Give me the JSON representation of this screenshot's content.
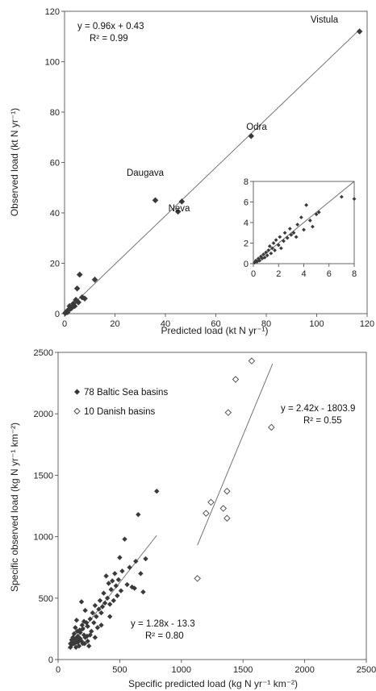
{
  "chart_data": [
    {
      "type": "scatter",
      "title": "",
      "xlabel": "Predicted load (kt N yr⁻¹)",
      "ylabel": "Observed load (kt N yr⁻¹)",
      "xlim": [
        0,
        120
      ],
      "ylim": [
        0,
        120
      ],
      "xticks": [
        0,
        20,
        40,
        60,
        80,
        100,
        120
      ],
      "yticks": [
        0,
        20,
        40,
        60,
        80,
        100,
        120
      ],
      "grid": false,
      "series": [
        {
          "marker": "filled-diamond",
          "points": [
            {
              "x": 117,
              "y": 112,
              "label": "Vistula"
            },
            {
              "x": 74,
              "y": 70.5,
              "label": "Odra"
            },
            {
              "x": 36,
              "y": 45,
              "label": "Daugava"
            },
            {
              "x": 46.5,
              "y": 44.5,
              "label": "Neva"
            },
            {
              "x": 45,
              "y": 40.5
            },
            {
              "x": 6,
              "y": 15.5
            },
            {
              "x": 12,
              "y": 13.5
            },
            {
              "x": 5,
              "y": 10
            },
            {
              "x": 7,
              "y": 6.5
            },
            {
              "x": 8,
              "y": 6
            },
            {
              "x": 4.5,
              "y": 5.5
            },
            {
              "x": 5.5,
              "y": 4.5
            },
            {
              "x": 3.5,
              "y": 4
            },
            {
              "x": 4,
              "y": 3
            },
            {
              "x": 3,
              "y": 2.5
            },
            {
              "x": 2,
              "y": 3
            },
            {
              "x": 2.5,
              "y": 2
            },
            {
              "x": 1.5,
              "y": 1.5
            },
            {
              "x": 1,
              "y": 1
            },
            {
              "x": 0.5,
              "y": 0.5
            },
            {
              "x": 0.3,
              "y": 0.2
            },
            {
              "x": 1.2,
              "y": 0.6
            }
          ]
        }
      ],
      "trendline": {
        "slope": 0.96,
        "intercept": 0.43,
        "x_range": [
          0,
          117
        ]
      },
      "annotations": [
        "y = 0.96x + 0.43",
        "R² = 0.99"
      ],
      "inset": {
        "xlim": [
          0,
          8
        ],
        "ylim": [
          0,
          8
        ],
        "xticks": [
          0,
          2,
          4,
          6,
          8
        ],
        "yticks": [
          0,
          2,
          4,
          6,
          8
        ],
        "points": [
          {
            "x": 0.1,
            "y": 0.1
          },
          {
            "x": 0.2,
            "y": 0.3
          },
          {
            "x": 0.3,
            "y": 0.2
          },
          {
            "x": 0.4,
            "y": 0.5
          },
          {
            "x": 0.5,
            "y": 0.3
          },
          {
            "x": 0.6,
            "y": 0.7
          },
          {
            "x": 0.7,
            "y": 0.5
          },
          {
            "x": 0.8,
            "y": 0.9
          },
          {
            "x": 0.9,
            "y": 0.6
          },
          {
            "x": 1.0,
            "y": 1.1
          },
          {
            "x": 1.1,
            "y": 0.8
          },
          {
            "x": 1.2,
            "y": 1.3
          },
          {
            "x": 1.3,
            "y": 1.7
          },
          {
            "x": 1.4,
            "y": 1.0
          },
          {
            "x": 1.5,
            "y": 1.5
          },
          {
            "x": 1.6,
            "y": 2.0
          },
          {
            "x": 1.7,
            "y": 1.3
          },
          {
            "x": 1.8,
            "y": 2.3
          },
          {
            "x": 2.0,
            "y": 1.8
          },
          {
            "x": 2.1,
            "y": 2.6
          },
          {
            "x": 2.2,
            "y": 1.5
          },
          {
            "x": 2.4,
            "y": 2.2
          },
          {
            "x": 2.5,
            "y": 3.0
          },
          {
            "x": 2.7,
            "y": 2.5
          },
          {
            "x": 2.9,
            "y": 3.4
          },
          {
            "x": 3.0,
            "y": 2.8
          },
          {
            "x": 3.2,
            "y": 3.0
          },
          {
            "x": 3.4,
            "y": 2.6
          },
          {
            "x": 3.5,
            "y": 3.8
          },
          {
            "x": 3.8,
            "y": 4.5
          },
          {
            "x": 4.0,
            "y": 3.3
          },
          {
            "x": 4.2,
            "y": 5.7
          },
          {
            "x": 4.5,
            "y": 4.2
          },
          {
            "x": 4.7,
            "y": 3.6
          },
          {
            "x": 5.0,
            "y": 4.8
          },
          {
            "x": 5.2,
            "y": 5.0
          },
          {
            "x": 7.0,
            "y": 6.5
          },
          {
            "x": 8.0,
            "y": 6.3
          }
        ]
      }
    },
    {
      "type": "scatter",
      "title": "",
      "xlabel": "Specific predicted load (kg N yr⁻¹ km⁻²)",
      "ylabel": "Specific observed load (kg N yr⁻¹ km⁻²)",
      "xlim": [
        0,
        2500
      ],
      "ylim": [
        0,
        2500
      ],
      "xticks": [
        0,
        500,
        1000,
        1500,
        2000,
        2500
      ],
      "yticks": [
        0,
        500,
        1000,
        1500,
        2000,
        2500
      ],
      "grid": false,
      "legend_position": "top-left",
      "series": [
        {
          "name": "78 Baltic Sea basins",
          "marker": "filled-diamond",
          "points": [
            {
              "x": 100,
              "y": 100
            },
            {
              "x": 110,
              "y": 120
            },
            {
              "x": 120,
              "y": 150
            },
            {
              "x": 130,
              "y": 130
            },
            {
              "x": 140,
              "y": 170
            },
            {
              "x": 150,
              "y": 140
            },
            {
              "x": 160,
              "y": 190
            },
            {
              "x": 170,
              "y": 160
            },
            {
              "x": 180,
              "y": 220
            },
            {
              "x": 190,
              "y": 150
            },
            {
              "x": 200,
              "y": 250
            },
            {
              "x": 210,
              "y": 200
            },
            {
              "x": 220,
              "y": 180
            },
            {
              "x": 230,
              "y": 300
            },
            {
              "x": 240,
              "y": 270
            },
            {
              "x": 250,
              "y": 110
            },
            {
              "x": 260,
              "y": 330
            },
            {
              "x": 270,
              "y": 230
            },
            {
              "x": 280,
              "y": 380
            },
            {
              "x": 290,
              "y": 300
            },
            {
              "x": 300,
              "y": 440
            },
            {
              "x": 310,
              "y": 350
            },
            {
              "x": 320,
              "y": 260
            },
            {
              "x": 330,
              "y": 410
            },
            {
              "x": 340,
              "y": 480
            },
            {
              "x": 350,
              "y": 380
            },
            {
              "x": 360,
              "y": 430
            },
            {
              "x": 370,
              "y": 540
            },
            {
              "x": 380,
              "y": 460
            },
            {
              "x": 390,
              "y": 680
            },
            {
              "x": 400,
              "y": 500
            },
            {
              "x": 410,
              "y": 620
            },
            {
              "x": 420,
              "y": 450
            },
            {
              "x": 430,
              "y": 570
            },
            {
              "x": 440,
              "y": 640
            },
            {
              "x": 450,
              "y": 480
            },
            {
              "x": 460,
              "y": 700
            },
            {
              "x": 470,
              "y": 600
            },
            {
              "x": 480,
              "y": 520
            },
            {
              "x": 490,
              "y": 650
            },
            {
              "x": 500,
              "y": 830
            },
            {
              "x": 510,
              "y": 560
            },
            {
              "x": 520,
              "y": 720
            },
            {
              "x": 540,
              "y": 980
            },
            {
              "x": 560,
              "y": 610
            },
            {
              "x": 580,
              "y": 750
            },
            {
              "x": 600,
              "y": 590
            },
            {
              "x": 620,
              "y": 580
            },
            {
              "x": 630,
              "y": 800
            },
            {
              "x": 650,
              "y": 1180
            },
            {
              "x": 670,
              "y": 700
            },
            {
              "x": 690,
              "y": 550
            },
            {
              "x": 710,
              "y": 820
            },
            {
              "x": 800,
              "y": 1370
            },
            {
              "x": 130,
              "y": 210
            },
            {
              "x": 140,
              "y": 260
            },
            {
              "x": 150,
              "y": 320
            },
            {
              "x": 160,
              "y": 140
            },
            {
              "x": 170,
              "y": 110
            },
            {
              "x": 180,
              "y": 170
            },
            {
              "x": 190,
              "y": 470
            },
            {
              "x": 200,
              "y": 130
            },
            {
              "x": 210,
              "y": 310
            },
            {
              "x": 220,
              "y": 400
            },
            {
              "x": 240,
              "y": 150
            },
            {
              "x": 260,
              "y": 200
            },
            {
              "x": 300,
              "y": 180
            },
            {
              "x": 350,
              "y": 280
            },
            {
              "x": 420,
              "y": 350
            },
            {
              "x": 120,
              "y": 180
            },
            {
              "x": 110,
              "y": 160
            },
            {
              "x": 100,
              "y": 130
            },
            {
              "x": 145,
              "y": 100
            },
            {
              "x": 155,
              "y": 230
            },
            {
              "x": 175,
              "y": 240
            },
            {
              "x": 195,
              "y": 280
            },
            {
              "x": 215,
              "y": 130
            },
            {
              "x": 235,
              "y": 190
            }
          ]
        },
        {
          "name": "10 Danish basins",
          "marker": "open-diamond",
          "points": [
            {
              "x": 1130,
              "y": 660
            },
            {
              "x": 1200,
              "y": 1190
            },
            {
              "x": 1240,
              "y": 1280
            },
            {
              "x": 1340,
              "y": 1230
            },
            {
              "x": 1370,
              "y": 1150
            },
            {
              "x": 1370,
              "y": 1370
            },
            {
              "x": 1380,
              "y": 2010
            },
            {
              "x": 1440,
              "y": 2280
            },
            {
              "x": 1570,
              "y": 2430
            },
            {
              "x": 1730,
              "y": 1890
            }
          ]
        }
      ],
      "trendlines": [
        {
          "slope": 1.28,
          "intercept": -13.3,
          "x_range": [
            80,
            800
          ]
        },
        {
          "slope": 2.42,
          "intercept": -1803.9,
          "x_range": [
            1130,
            1740
          ]
        }
      ],
      "annotations": [
        "y = 2.42x - 1803.9",
        "R² = 0.55",
        "y = 1.28x - 13.3",
        "R² = 0.80"
      ]
    }
  ]
}
